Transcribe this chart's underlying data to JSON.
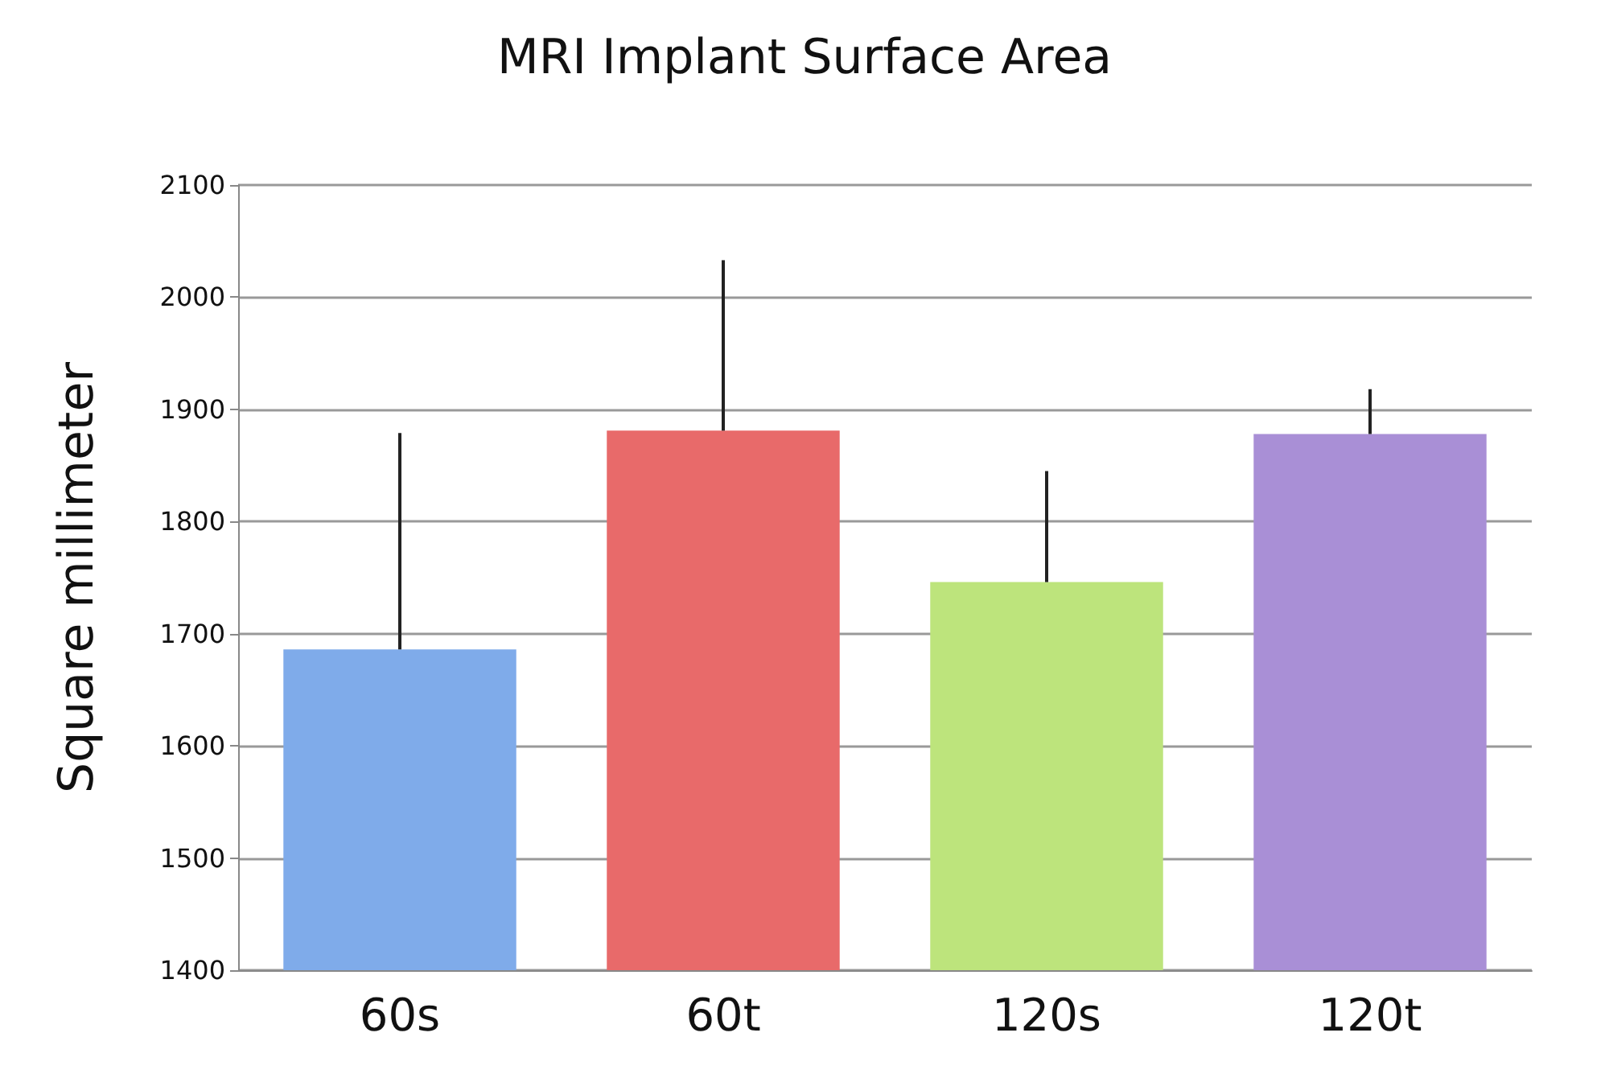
{
  "chart_data": {
    "type": "bar",
    "title": "MRI Implant Surface Area",
    "ylabel": "Square millimeter",
    "categories": [
      "60s",
      "60t",
      "120s",
      "120t"
    ],
    "values": [
      1686,
      1881,
      1746,
      1878
    ],
    "colors": [
      "#7fabea",
      "#e86a6a",
      "#bde47c",
      "#a98fd6"
    ],
    "errors": [
      [
        1686,
        1879
      ],
      [
        1881,
        2033
      ],
      [
        1746,
        1845
      ],
      [
        1878,
        1918
      ]
    ],
    "ylim": [
      1400,
      2100
    ],
    "yticks": [
      1400,
      1500,
      1600,
      1700,
      1800,
      1900,
      2000,
      2100
    ],
    "grid": "y"
  }
}
